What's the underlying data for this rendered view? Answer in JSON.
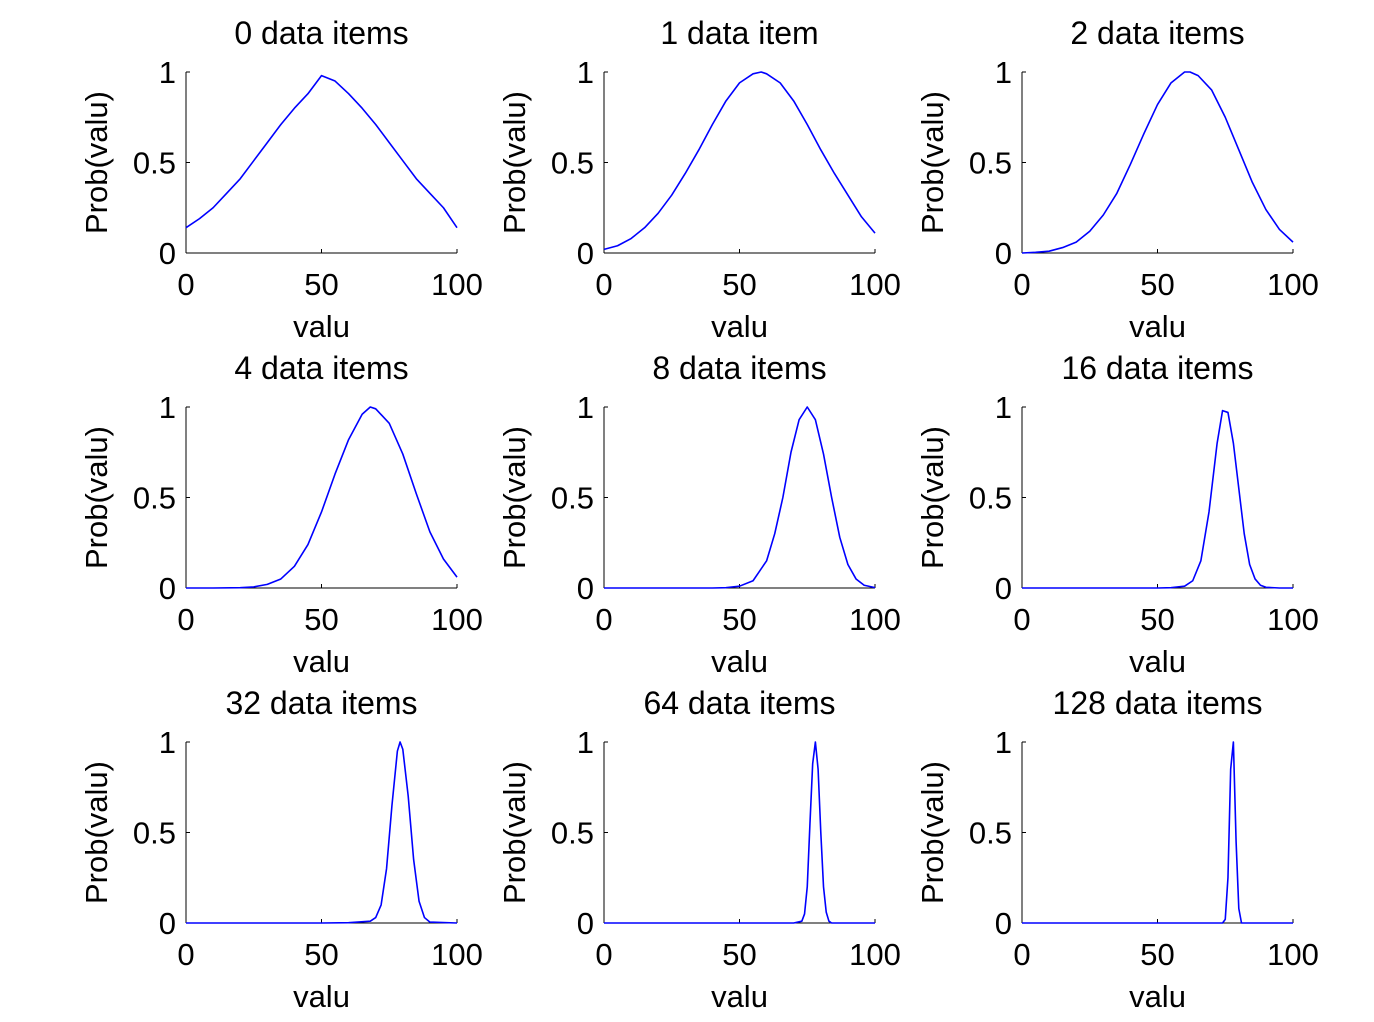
{
  "figure": {
    "line_color": "#0000ff",
    "axis_color": "#000000",
    "background": "#ffffff"
  },
  "chart_data": [
    {
      "type": "line",
      "title": "0 data items",
      "xlabel": "valu",
      "ylabel": "Prob(valu)",
      "xlim": [
        0,
        100
      ],
      "ylim": [
        0,
        1
      ],
      "xticks": [
        0,
        50,
        100
      ],
      "yticks": [
        0,
        0.5,
        1
      ],
      "ytick_labels": [
        "0",
        "0.5",
        "1"
      ],
      "grid": false,
      "series": [
        {
          "x": [
            0,
            5,
            10,
            15,
            20,
            25,
            30,
            35,
            40,
            45,
            50,
            55,
            60,
            65,
            70,
            75,
            80,
            85,
            90,
            95,
            100
          ],
          "y": [
            0.14,
            0.19,
            0.25,
            0.33,
            0.41,
            0.51,
            0.61,
            0.71,
            0.8,
            0.88,
            0.98,
            0.95,
            0.88,
            0.8,
            0.71,
            0.61,
            0.51,
            0.41,
            0.33,
            0.25,
            0.14
          ]
        }
      ]
    },
    {
      "type": "line",
      "title": "1 data item",
      "xlabel": "valu",
      "ylabel": "Prob(valu)",
      "xlim": [
        0,
        100
      ],
      "ylim": [
        0,
        1
      ],
      "xticks": [
        0,
        50,
        100
      ],
      "yticks": [
        0,
        0.5,
        1
      ],
      "ytick_labels": [
        "0",
        "0.5",
        "1"
      ],
      "grid": false,
      "series": [
        {
          "x": [
            0,
            5,
            10,
            15,
            20,
            25,
            30,
            35,
            40,
            45,
            50,
            55,
            58,
            60,
            65,
            70,
            75,
            80,
            85,
            90,
            95,
            100
          ],
          "y": [
            0.02,
            0.04,
            0.08,
            0.14,
            0.22,
            0.32,
            0.44,
            0.57,
            0.71,
            0.84,
            0.94,
            0.99,
            1.0,
            0.99,
            0.94,
            0.84,
            0.71,
            0.57,
            0.44,
            0.32,
            0.2,
            0.11
          ]
        }
      ]
    },
    {
      "type": "line",
      "title": "2 data items",
      "xlabel": "valu",
      "ylabel": "Prob(valu)",
      "xlim": [
        0,
        100
      ],
      "ylim": [
        0,
        1
      ],
      "xticks": [
        0,
        50,
        100
      ],
      "yticks": [
        0,
        0.5,
        1
      ],
      "ytick_labels": [
        "0",
        "0.5",
        "1"
      ],
      "grid": false,
      "series": [
        {
          "x": [
            0,
            5,
            10,
            15,
            20,
            25,
            30,
            35,
            40,
            45,
            50,
            55,
            60,
            62,
            65,
            70,
            75,
            80,
            85,
            90,
            95,
            100
          ],
          "y": [
            0.0,
            0.004,
            0.01,
            0.03,
            0.06,
            0.12,
            0.21,
            0.33,
            0.49,
            0.66,
            0.82,
            0.94,
            1.0,
            1.0,
            0.98,
            0.9,
            0.75,
            0.57,
            0.39,
            0.24,
            0.13,
            0.06
          ]
        }
      ]
    },
    {
      "type": "line",
      "title": "4 data items",
      "xlabel": "valu",
      "ylabel": "Prob(valu)",
      "xlim": [
        0,
        100
      ],
      "ylim": [
        0,
        1
      ],
      "xticks": [
        0,
        50,
        100
      ],
      "yticks": [
        0,
        0.5,
        1
      ],
      "ytick_labels": [
        "0",
        "0.5",
        "1"
      ],
      "grid": false,
      "series": [
        {
          "x": [
            0,
            10,
            20,
            25,
            30,
            35,
            40,
            45,
            50,
            55,
            60,
            65,
            68,
            70,
            75,
            80,
            85,
            90,
            95,
            100
          ],
          "y": [
            0.0,
            0.0,
            0.002,
            0.006,
            0.02,
            0.05,
            0.12,
            0.24,
            0.42,
            0.63,
            0.82,
            0.96,
            1.0,
            0.99,
            0.91,
            0.74,
            0.52,
            0.31,
            0.16,
            0.06
          ]
        }
      ]
    },
    {
      "type": "line",
      "title": "8 data items",
      "xlabel": "valu",
      "ylabel": "Prob(valu)",
      "xlim": [
        0,
        100
      ],
      "ylim": [
        0,
        1
      ],
      "xticks": [
        0,
        50,
        100
      ],
      "yticks": [
        0,
        0.5,
        1
      ],
      "ytick_labels": [
        "0",
        "0.5",
        "1"
      ],
      "grid": false,
      "series": [
        {
          "x": [
            0,
            20,
            40,
            45,
            50,
            55,
            60,
            63,
            66,
            69,
            72,
            75,
            78,
            81,
            84,
            87,
            90,
            93,
            96,
            100
          ],
          "y": [
            0.0,
            0.0,
            0.0,
            0.002,
            0.01,
            0.04,
            0.15,
            0.3,
            0.5,
            0.75,
            0.93,
            1.0,
            0.93,
            0.74,
            0.5,
            0.28,
            0.13,
            0.05,
            0.015,
            0.002
          ]
        }
      ]
    },
    {
      "type": "line",
      "title": "16 data items",
      "xlabel": "valu",
      "ylabel": "Prob(valu)",
      "xlim": [
        0,
        100
      ],
      "ylim": [
        0,
        1
      ],
      "xticks": [
        0,
        50,
        100
      ],
      "yticks": [
        0,
        0.5,
        1
      ],
      "ytick_labels": [
        "0",
        "0.5",
        "1"
      ],
      "grid": false,
      "series": [
        {
          "x": [
            0,
            30,
            50,
            55,
            60,
            63,
            66,
            69,
            72,
            74,
            76,
            78,
            80,
            82,
            84,
            86,
            88,
            90,
            95,
            100
          ],
          "y": [
            0.0,
            0.0,
            0.0,
            0.002,
            0.01,
            0.04,
            0.15,
            0.42,
            0.8,
            0.98,
            0.97,
            0.8,
            0.55,
            0.3,
            0.13,
            0.05,
            0.015,
            0.004,
            0.0,
            0.0
          ]
        }
      ]
    },
    {
      "type": "line",
      "title": "32 data items",
      "xlabel": "valu",
      "ylabel": "Prob(valu)",
      "xlim": [
        0,
        100
      ],
      "ylim": [
        0,
        1
      ],
      "xticks": [
        0,
        50,
        100
      ],
      "yticks": [
        0,
        0.5,
        1
      ],
      "ytick_labels": [
        "0",
        "0.5",
        "1"
      ],
      "grid": false,
      "series": [
        {
          "x": [
            0,
            50,
            60,
            68,
            70,
            72,
            74,
            76,
            78,
            79,
            80,
            82,
            84,
            86,
            88,
            90,
            100
          ],
          "y": [
            0.0,
            0.0,
            0.002,
            0.01,
            0.03,
            0.1,
            0.3,
            0.65,
            0.95,
            1.0,
            0.96,
            0.7,
            0.35,
            0.12,
            0.03,
            0.005,
            0.0
          ]
        }
      ]
    },
    {
      "type": "line",
      "title": "64 data items",
      "xlabel": "valu",
      "ylabel": "Prob(valu)",
      "xlim": [
        0,
        100
      ],
      "ylim": [
        0,
        1
      ],
      "xticks": [
        0,
        50,
        100
      ],
      "yticks": [
        0,
        0.5,
        1
      ],
      "ytick_labels": [
        "0",
        "0.5",
        "1"
      ],
      "grid": false,
      "series": [
        {
          "x": [
            0,
            70,
            73,
            74,
            75,
            76,
            77,
            78,
            79,
            80,
            81,
            82,
            83,
            84,
            100
          ],
          "y": [
            0.0,
            0.0,
            0.01,
            0.05,
            0.2,
            0.55,
            0.88,
            1.0,
            0.85,
            0.5,
            0.2,
            0.06,
            0.01,
            0.0,
            0.0
          ]
        }
      ]
    },
    {
      "type": "line",
      "title": "128 data items",
      "xlabel": "valu",
      "ylabel": "Prob(valu)",
      "xlim": [
        0,
        100
      ],
      "ylim": [
        0,
        1
      ],
      "xticks": [
        0,
        50,
        100
      ],
      "yticks": [
        0,
        0.5,
        1
      ],
      "ytick_labels": [
        "0",
        "0.5",
        "1"
      ],
      "grid": false,
      "series": [
        {
          "x": [
            0,
            74,
            75,
            76,
            77,
            78,
            79,
            80,
            81,
            100
          ],
          "y": [
            0.0,
            0.0,
            0.02,
            0.25,
            0.85,
            1.0,
            0.45,
            0.08,
            0.0,
            0.0
          ]
        }
      ]
    }
  ]
}
